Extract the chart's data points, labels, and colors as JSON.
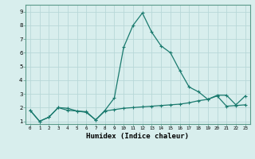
{
  "xlabel": "Humidex (Indice chaleur)",
  "xlim": [
    -0.5,
    23.5
  ],
  "ylim": [
    0.8,
    9.5
  ],
  "yticks": [
    1,
    2,
    3,
    4,
    5,
    6,
    7,
    8,
    9
  ],
  "xticks": [
    0,
    1,
    2,
    3,
    4,
    5,
    6,
    7,
    8,
    9,
    10,
    11,
    12,
    13,
    14,
    15,
    16,
    17,
    18,
    19,
    20,
    21,
    22,
    23
  ],
  "bg_color": "#d8eeed",
  "grid_color": "#b8d8d8",
  "line_color": "#1a7a6e",
  "line1_x": [
    0,
    1,
    2,
    3,
    4,
    5,
    6,
    7,
    8,
    9,
    10,
    11,
    12,
    13,
    14,
    15,
    16,
    17,
    18,
    19,
    20,
    21,
    22,
    23
  ],
  "line1_y": [
    1.8,
    1.0,
    1.3,
    2.0,
    1.8,
    1.75,
    1.7,
    1.1,
    1.8,
    2.7,
    6.4,
    8.0,
    8.9,
    7.5,
    6.5,
    6.0,
    4.7,
    3.5,
    3.15,
    2.6,
    2.9,
    2.9,
    2.2,
    2.85
  ],
  "line2_x": [
    0,
    1,
    2,
    3,
    4,
    5,
    6,
    7,
    8,
    9,
    10,
    11,
    12,
    13,
    14,
    15,
    16,
    17,
    18,
    19,
    20,
    21,
    22,
    23
  ],
  "line2_y": [
    1.8,
    1.0,
    1.3,
    2.0,
    1.95,
    1.75,
    1.65,
    1.1,
    1.75,
    1.85,
    1.95,
    2.0,
    2.05,
    2.1,
    2.15,
    2.2,
    2.25,
    2.35,
    2.5,
    2.6,
    2.85,
    2.1,
    2.15,
    2.2
  ]
}
